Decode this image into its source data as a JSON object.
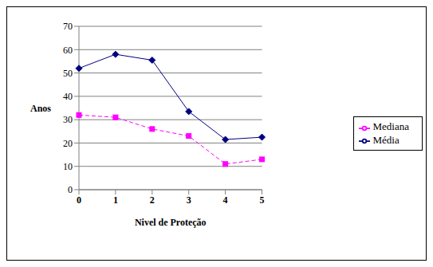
{
  "chart_data": {
    "type": "line",
    "x_label": "Nivel de Proteção",
    "y_label": "Anos",
    "categories": [
      "0",
      "1",
      "2",
      "3",
      "4",
      "5"
    ],
    "series": [
      {
        "name": "Média",
        "color": "#000080",
        "marker": "diamond",
        "line_style": "solid",
        "values": [
          52,
          58,
          55.5,
          33.5,
          21.5,
          22.5
        ]
      },
      {
        "name": "Mediana",
        "color": "#ff00ff",
        "marker": "square",
        "line_style": "dashed",
        "values": [
          32,
          31,
          26,
          23,
          11,
          13
        ]
      }
    ],
    "ylim": [
      0,
      70
    ],
    "yticks": [
      0,
      10,
      20,
      30,
      40,
      50,
      60,
      70
    ],
    "grid": true,
    "legend": "right"
  }
}
